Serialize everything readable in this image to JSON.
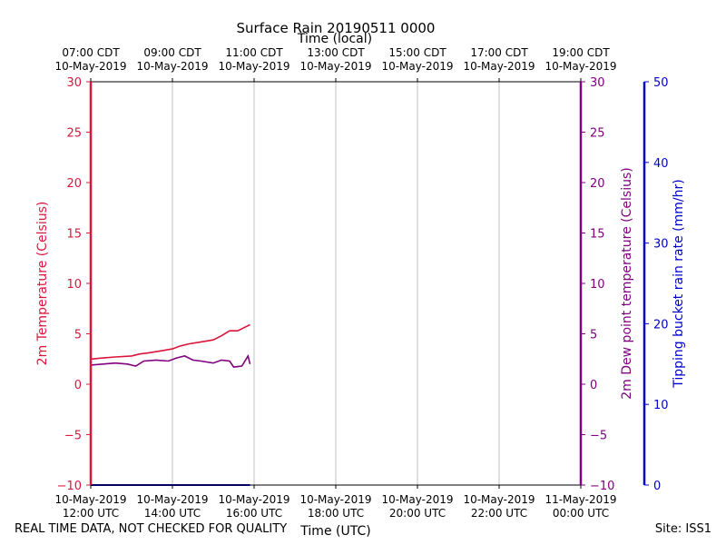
{
  "title": "Surface Rain 20190511 0000",
  "footer": {
    "disclaimer": "REAL TIME DATA, NOT CHECKED FOR QUALITY",
    "site": "Site: ISS1"
  },
  "colors": {
    "temperature": "#dc143c",
    "dewpoint": "#800080",
    "rain": "#0000cd",
    "grid": "#b0b0b0"
  },
  "chart_data": {
    "type": "line",
    "xlabel_bottom": "Time (UTC)",
    "xlabel_top": "Time (local)",
    "ylabel_left": "2m Temperature (Celsius)",
    "ylabel_right": "2m Dew point temperature (Celsius)",
    "ylabel_far_right": "Tipping bucket rain rate (mm/hr)",
    "x_hours": [
      12,
      14,
      16,
      18,
      20,
      22,
      24
    ],
    "xlim": [
      12,
      24
    ],
    "bottom_ticks": [
      [
        "10-May-2019",
        "12:00 UTC"
      ],
      [
        "10-May-2019",
        "14:00 UTC"
      ],
      [
        "10-May-2019",
        "16:00 UTC"
      ],
      [
        "10-May-2019",
        "18:00 UTC"
      ],
      [
        "10-May-2019",
        "20:00 UTC"
      ],
      [
        "10-May-2019",
        "22:00 UTC"
      ],
      [
        "11-May-2019",
        "00:00 UTC"
      ]
    ],
    "top_ticks": [
      [
        "07:00 CDT",
        "10-May-2019"
      ],
      [
        "09:00 CDT",
        "10-May-2019"
      ],
      [
        "11:00 CDT",
        "10-May-2019"
      ],
      [
        "13:00 CDT",
        "10-May-2019"
      ],
      [
        "15:00 CDT",
        "10-May-2019"
      ],
      [
        "17:00 CDT",
        "10-May-2019"
      ],
      [
        "19:00 CDT",
        "10-May-2019"
      ]
    ],
    "ylim_temp": [
      -10,
      30
    ],
    "yticks_temp": [
      -10,
      -5,
      0,
      5,
      10,
      15,
      20,
      25,
      30
    ],
    "ylim_rain": [
      0,
      50
    ],
    "yticks_rain": [
      0,
      10,
      20,
      30,
      40,
      50
    ],
    "series": [
      {
        "name": "2m Temperature",
        "x": [
          12.0,
          12.3,
          12.6,
          13.0,
          13.2,
          13.4,
          13.7,
          14.0,
          14.2,
          14.4,
          14.7,
          15.0,
          15.2,
          15.4,
          15.6,
          15.8,
          15.9
        ],
        "values": [
          2.5,
          2.6,
          2.7,
          2.8,
          3.0,
          3.1,
          3.3,
          3.5,
          3.8,
          4.0,
          4.2,
          4.4,
          4.8,
          5.3,
          5.3,
          5.7,
          5.9
        ]
      },
      {
        "name": "2m Dew point temperature",
        "x": [
          12.0,
          12.3,
          12.6,
          12.9,
          13.1,
          13.3,
          13.6,
          13.9,
          14.1,
          14.3,
          14.5,
          14.7,
          15.0,
          15.2,
          15.4,
          15.5,
          15.7,
          15.85,
          15.9
        ],
        "values": [
          1.9,
          2.0,
          2.1,
          2.0,
          1.8,
          2.3,
          2.4,
          2.3,
          2.6,
          2.8,
          2.4,
          2.3,
          2.1,
          2.4,
          2.3,
          1.7,
          1.8,
          2.8,
          2.0
        ]
      },
      {
        "name": "Tipping bucket rain rate",
        "x": [
          12.0,
          15.9
        ],
        "values": [
          0,
          0
        ]
      }
    ]
  }
}
